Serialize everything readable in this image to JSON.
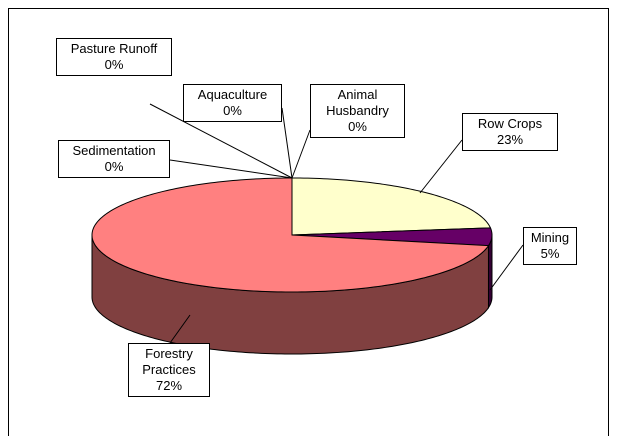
{
  "chart_data": {
    "type": "pie3d",
    "categories": [
      "Row Crops",
      "Mining",
      "Forestry Practices",
      "Sedimentation",
      "Pasture Runoff",
      "Aquaculture",
      "Animal Husbandry"
    ],
    "values": [
      23,
      5,
      72,
      0,
      0,
      0,
      0
    ],
    "value_labels": [
      "23%",
      "5%",
      "72%",
      "0%",
      "0%",
      "0%",
      "0%"
    ],
    "colors": [
      "#FFFFCC",
      "#660066",
      "#FF8080",
      "#9999FF",
      "#993366",
      "#CCFFFF",
      "#FFCC99"
    ],
    "side_colors": [
      "#99997A",
      "#330033",
      "#804040",
      "#4D4D80",
      "#4D1A33",
      "#668080",
      "#80664D"
    ]
  }
}
